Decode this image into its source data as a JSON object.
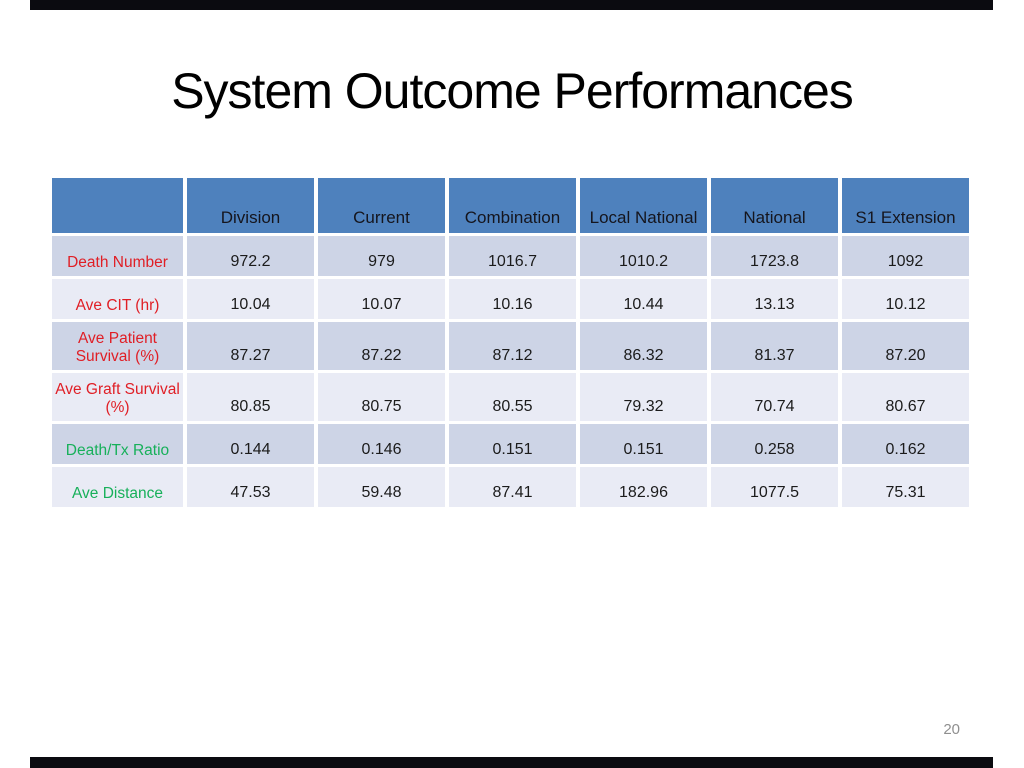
{
  "slide": {
    "title": "System Outcome Performances",
    "page_number": "20"
  },
  "colors": {
    "header_bg": "#4e81bd",
    "band_dark": "#cdd4e6",
    "band_light": "#e9ebf5",
    "label_red": "#e01e25",
    "label_green": "#17b05a",
    "letterbox": "#0b0b10"
  },
  "chart_data": {
    "type": "table",
    "title": "System Outcome Performances",
    "columns": [
      "",
      "Division",
      "Current",
      "Combination",
      "Local National",
      "National",
      "S1 Extension"
    ],
    "rows": [
      {
        "label": "Death Number",
        "label_color": "#e01e25",
        "values": [
          "972.2",
          "979",
          "1016.7",
          "1010.2",
          "1723.8",
          "1092"
        ]
      },
      {
        "label": "Ave CIT (hr)",
        "label_color": "#e01e25",
        "values": [
          "10.04",
          "10.07",
          "10.16",
          "10.44",
          "13.13",
          "10.12"
        ]
      },
      {
        "label": "Ave Patient Survival (%)",
        "label_color": "#e01e25",
        "values": [
          "87.27",
          "87.22",
          "87.12",
          "86.32",
          "81.37",
          "87.20"
        ]
      },
      {
        "label": "Ave Graft Survival (%)",
        "label_color": "#e01e25",
        "values": [
          "80.85",
          "80.75",
          "80.55",
          "79.32",
          "70.74",
          "80.67"
        ]
      },
      {
        "label": "Death/Tx Ratio",
        "label_color": "#17b05a",
        "values": [
          "0.144",
          "0.146",
          "0.151",
          "0.151",
          "0.258",
          "0.162"
        ]
      },
      {
        "label": "Ave Distance",
        "label_color": "#17b05a",
        "values": [
          "47.53",
          "59.48",
          "87.41",
          "182.96",
          "1077.5",
          "75.31"
        ]
      }
    ]
  }
}
